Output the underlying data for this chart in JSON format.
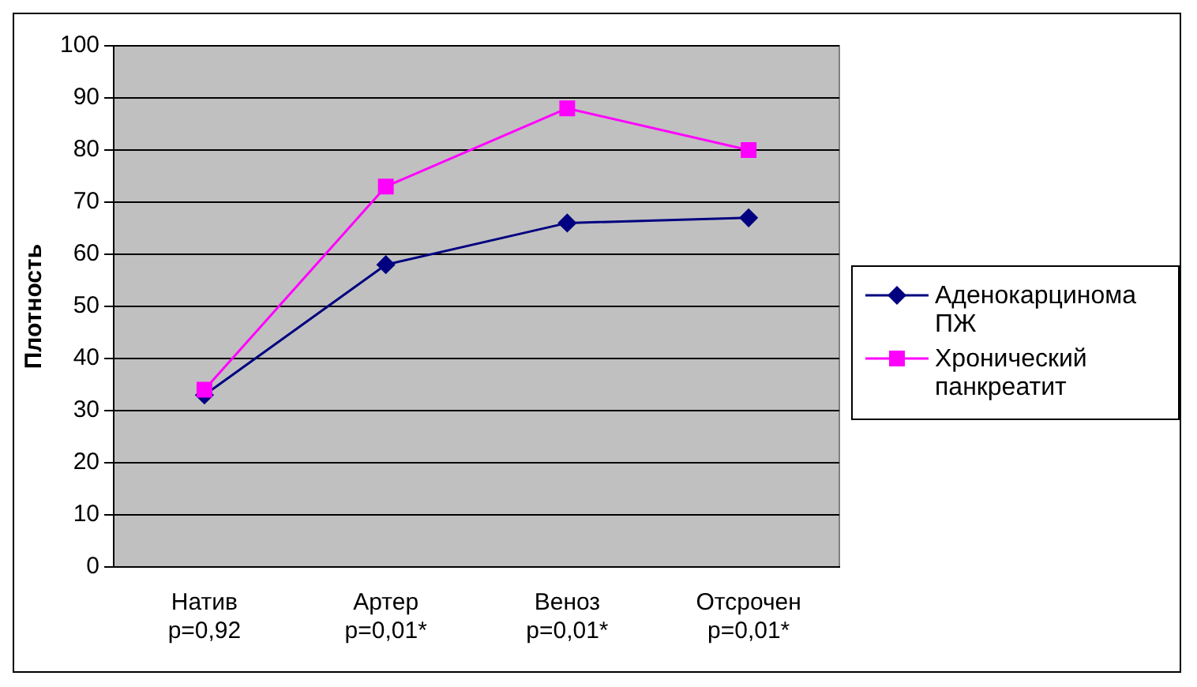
{
  "chart_data": {
    "type": "line",
    "ylabel": "Плотность",
    "categories": [
      "Натив\np=0,92",
      "Артер\np=0,01*",
      "Веноз\np=0,01*",
      "Отсрочен\np=0,01*"
    ],
    "series": [
      {
        "name": "Аденокарцинома ПЖ",
        "color": "#000080",
        "values": [
          33,
          58,
          66,
          67
        ],
        "marker": "diamond"
      },
      {
        "name": "Хронический панкреатит",
        "color": "#ff00ff",
        "values": [
          34,
          73,
          88,
          80
        ],
        "marker": "square"
      }
    ],
    "ylim": [
      0,
      100
    ],
    "yticks": [
      0,
      10,
      20,
      30,
      40,
      50,
      60,
      70,
      80,
      90,
      100
    ],
    "grid": "y",
    "legend": "right"
  }
}
